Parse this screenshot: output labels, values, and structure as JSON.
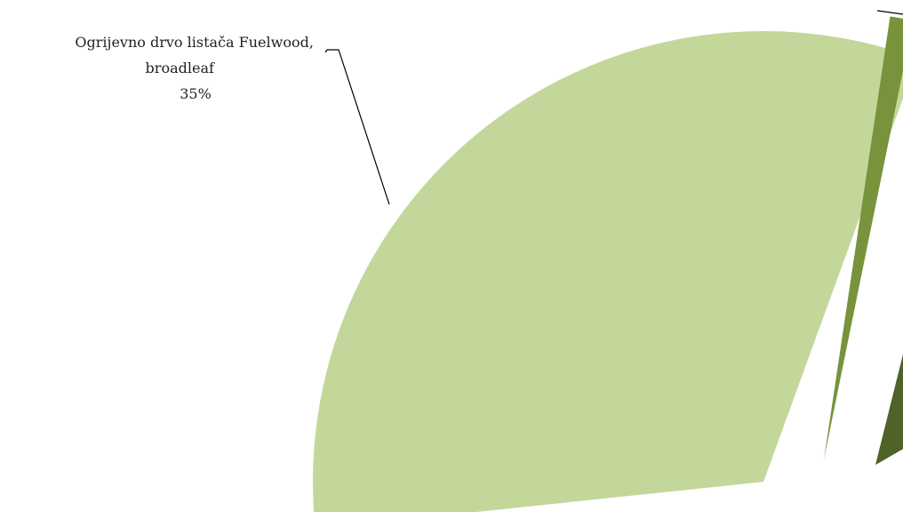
{
  "chart_data": {
    "type": "pie",
    "exploded": true,
    "labels_position": "outside with leader lines",
    "slices": [
      {
        "label_lines": [
          "Ogrijevno drvo listača  Fuelwood,",
          "broadleaf",
          "35%"
        ],
        "value": 35,
        "color": "#c4d79b"
      },
      {
        "label_lines": [],
        "value": 1,
        "color": "#77933c"
      },
      {
        "label_lines": [],
        "value": null,
        "color": "#4f6228"
      }
    ]
  }
}
